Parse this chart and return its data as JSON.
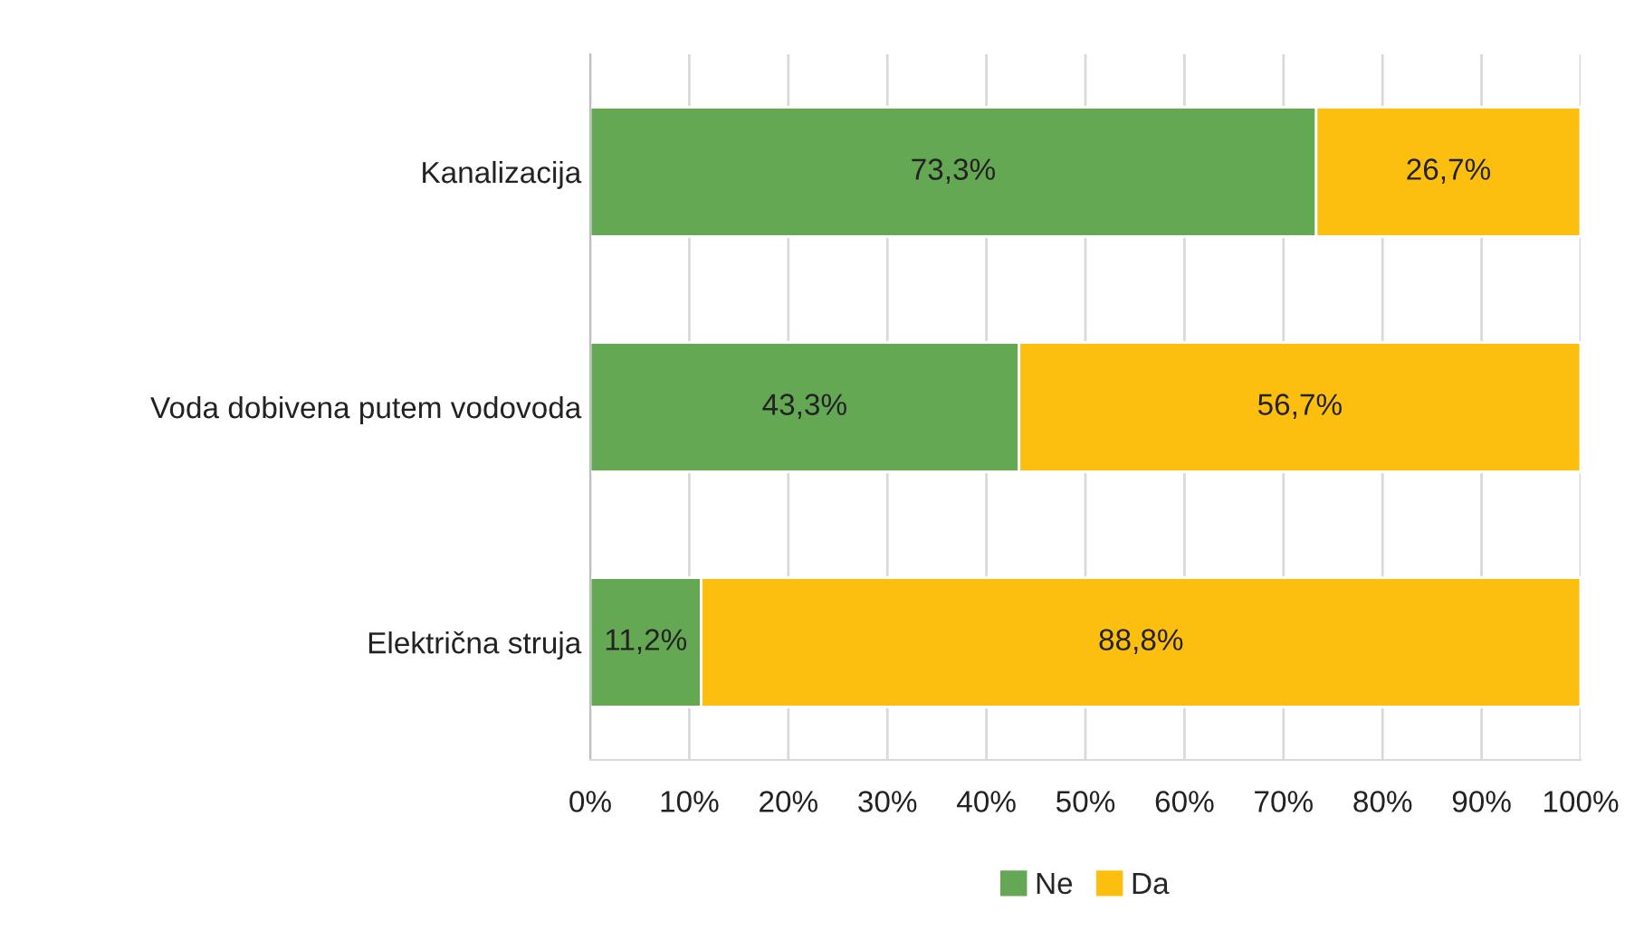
{
  "chart_data": {
    "type": "bar",
    "orientation": "horizontal",
    "stacked": true,
    "categories": [
      "Kanalizacija",
      "Voda dobivena putem vodovoda",
      "Električna struja"
    ],
    "series": [
      {
        "name": "Ne",
        "color": "#64a853",
        "values": [
          73.3,
          43.3,
          11.2
        ],
        "value_labels": [
          "73,3%",
          "43,3%",
          "11,2%"
        ]
      },
      {
        "name": "Da",
        "color": "#fdbf0f",
        "values": [
          26.7,
          56.7,
          88.8
        ],
        "value_labels": [
          "26,7%",
          "56,7%",
          "88,8%"
        ]
      }
    ],
    "xlim": [
      0,
      100
    ],
    "xticks": [
      {
        "value": 0,
        "label": "0%"
      },
      {
        "value": 10,
        "label": "10%"
      },
      {
        "value": 20,
        "label": "20%"
      },
      {
        "value": 30,
        "label": "30%"
      },
      {
        "value": 40,
        "label": "40%"
      },
      {
        "value": 50,
        "label": "50%"
      },
      {
        "value": 60,
        "label": "60%"
      },
      {
        "value": 70,
        "label": "70%"
      },
      {
        "value": 80,
        "label": "80%"
      },
      {
        "value": 90,
        "label": "90%"
      },
      {
        "value": 100,
        "label": "100%"
      }
    ],
    "grid": "x",
    "legend": "bottom"
  }
}
